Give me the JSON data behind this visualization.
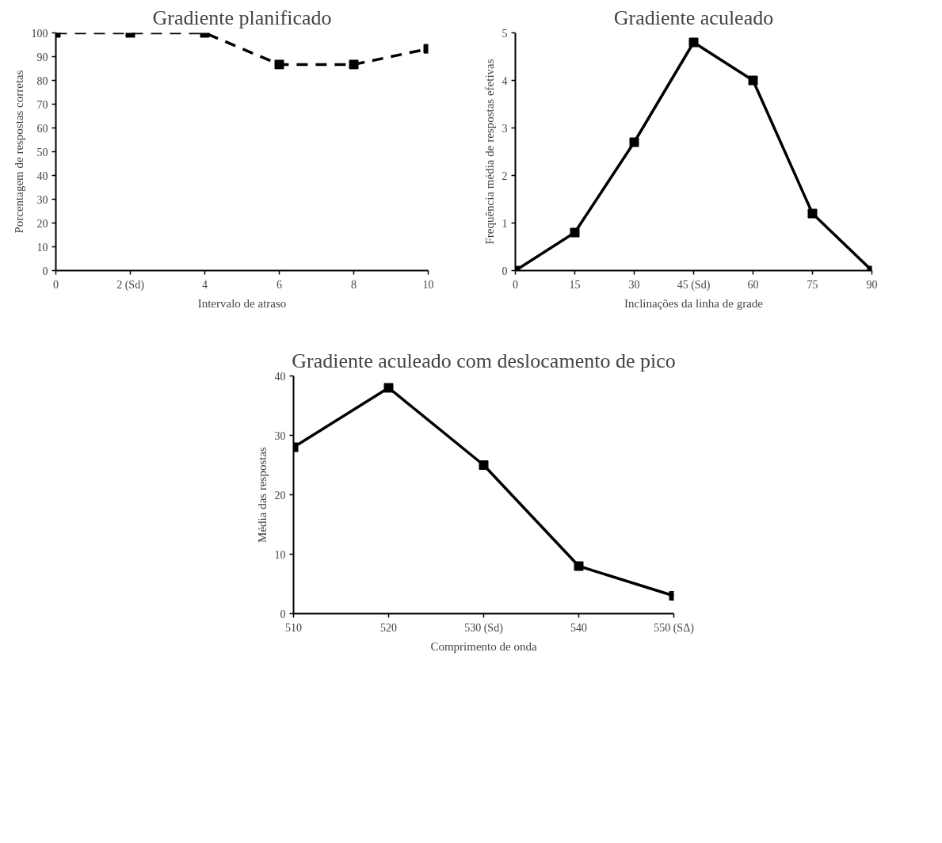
{
  "chart_data": [
    {
      "type": "line",
      "title": "Gradiente planificado",
      "xlabel": "Intervalo de atraso",
      "ylabel": "Porcentagem de respostas corretas",
      "x": [
        0,
        2,
        4,
        6,
        8,
        10
      ],
      "series": [
        {
          "color": "#000000",
          "values": [
            100,
            100,
            100,
            86.7,
            86.7,
            93.3
          ]
        }
      ],
      "xlim": [
        0,
        10
      ],
      "xticks": [
        0,
        {
          "value": 2,
          "label": "2 (Sd)"
        },
        4,
        6,
        8,
        10
      ],
      "ylim": [
        0,
        100
      ],
      "yticks": [
        0,
        10,
        20,
        30,
        40,
        50,
        60,
        70,
        80,
        90,
        100
      ],
      "marker": "square",
      "line_style": "dashed"
    },
    {
      "type": "line",
      "title": "Gradiente aculeado",
      "xlabel": "Inclinações da linha de grade",
      "ylabel": "Frequência média de respostas efetivas",
      "x": [
        0,
        15,
        30,
        45,
        60,
        75,
        90
      ],
      "series": [
        {
          "color": "#000000",
          "values": [
            0,
            0.8,
            2.7,
            4.8,
            4.0,
            1.2,
            0
          ]
        }
      ],
      "xlim": [
        0,
        90
      ],
      "xticks": [
        0,
        15,
        30,
        {
          "value": 45,
          "label": "45 (Sd)"
        },
        60,
        75,
        90
      ],
      "ylim": [
        0,
        5
      ],
      "yticks": [
        0,
        1,
        2,
        3,
        4,
        5
      ],
      "marker": "square",
      "line_style": "solid"
    },
    {
      "type": "line",
      "title": "Gradiente aculeado com deslocamento de pico",
      "xlabel": "Comprimento de onda",
      "ylabel": "Média das respostas",
      "x": [
        510,
        520,
        530,
        540,
        550
      ],
      "series": [
        {
          "color": "#000000",
          "values": [
            28,
            38,
            25,
            8,
            3
          ]
        }
      ],
      "xlim": [
        510,
        550
      ],
      "xticks": [
        510,
        520,
        {
          "value": 530,
          "label": "530 (Sd)"
        },
        540,
        {
          "value": 550,
          "label": "550 (SΔ)"
        }
      ],
      "ylim": [
        0,
        40
      ],
      "yticks": [
        0,
        10,
        20,
        30,
        40
      ],
      "marker": "square",
      "line_style": "solid"
    }
  ]
}
